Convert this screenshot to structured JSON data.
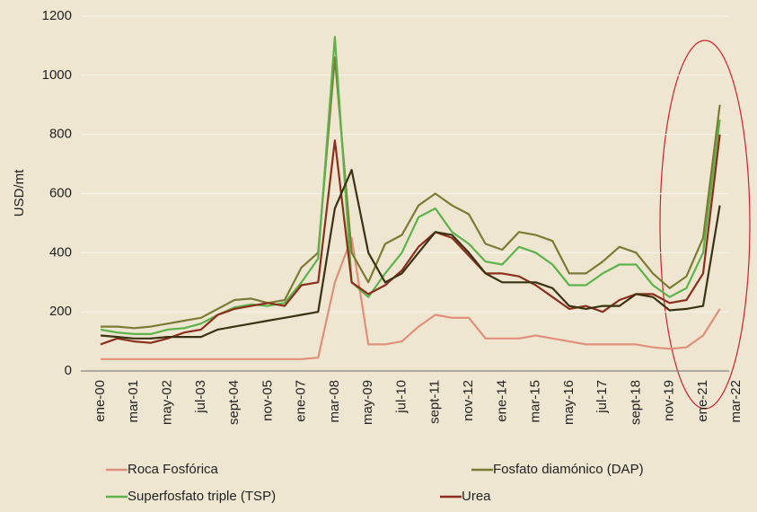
{
  "chart_data": {
    "type": "line",
    "y_label": "USD/mt",
    "categories": [
      "ene-00",
      null,
      "mar-01",
      null,
      "may-02",
      null,
      "jul-03",
      null,
      "sept-04",
      null,
      "nov-05",
      null,
      "ene-07",
      null,
      "mar-08",
      null,
      "may-09",
      null,
      "jul-10",
      null,
      "sept-11",
      null,
      "nov-12",
      null,
      "ene-14",
      null,
      "mar-15",
      null,
      "may-16",
      null,
      "jul-17",
      null,
      "sept-18",
      null,
      "nov-19",
      null,
      "ene-21",
      null,
      "mar-22"
    ],
    "ylim": [
      0,
      1200
    ],
    "yticks": [
      0,
      200,
      400,
      600,
      800,
      1000,
      1200
    ],
    "grid": true,
    "series": [
      {
        "name": "Roca Fosfórica",
        "color": "#e0907a",
        "values": [
          40,
          40,
          40,
          40,
          40,
          40,
          40,
          40,
          40,
          40,
          40,
          40,
          40,
          45,
          300,
          450,
          90,
          90,
          100,
          150,
          190,
          180,
          180,
          110,
          110,
          110,
          120,
          110,
          100,
          90,
          90,
          90,
          90,
          80,
          75,
          80,
          120,
          210,
          null
        ]
      },
      {
        "name": "Fosfato diamónico (DAP)",
        "color": "#7d7a33",
        "values": [
          150,
          150,
          145,
          150,
          160,
          170,
          180,
          210,
          240,
          245,
          230,
          240,
          350,
          400,
          1060,
          400,
          300,
          430,
          460,
          560,
          600,
          560,
          530,
          430,
          410,
          470,
          460,
          440,
          330,
          330,
          370,
          420,
          400,
          330,
          280,
          320,
          450,
          900,
          null
        ]
      },
      {
        "name": "Superfosfato triple (TSP)",
        "color": "#5cb34a",
        "values": [
          140,
          130,
          125,
          125,
          140,
          145,
          160,
          190,
          215,
          225,
          220,
          230,
          300,
          380,
          1130,
          300,
          250,
          330,
          400,
          520,
          550,
          470,
          430,
          370,
          360,
          420,
          400,
          360,
          290,
          290,
          330,
          360,
          360,
          290,
          250,
          280,
          400,
          850,
          null
        ]
      },
      {
        "name": "Urea",
        "color": "#8b2e1c",
        "values": [
          90,
          110,
          100,
          95,
          110,
          130,
          140,
          190,
          210,
          220,
          230,
          220,
          290,
          300,
          780,
          300,
          260,
          290,
          340,
          420,
          470,
          450,
          390,
          330,
          330,
          320,
          290,
          250,
          210,
          220,
          200,
          240,
          260,
          260,
          230,
          240,
          330,
          800,
          null
        ]
      },
      {
        "color": "#3a3212",
        "values": [
          120,
          115,
          110,
          110,
          115,
          115,
          115,
          140,
          150,
          160,
          170,
          180,
          190,
          200,
          550,
          680,
          400,
          300,
          330,
          400,
          470,
          460,
          400,
          330,
          300,
          300,
          300,
          280,
          220,
          210,
          220,
          220,
          260,
          250,
          205,
          210,
          220,
          560,
          null
        ]
      }
    ]
  }
}
